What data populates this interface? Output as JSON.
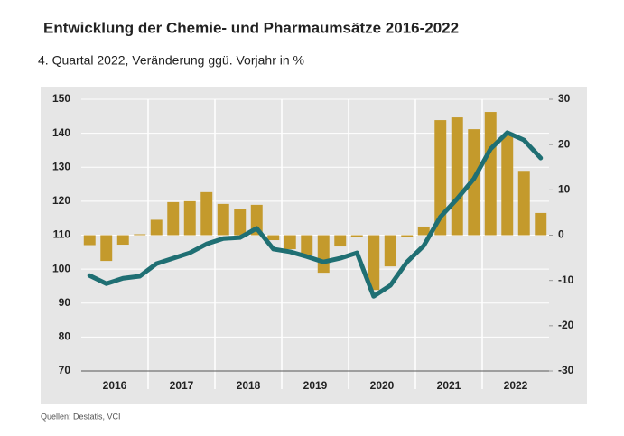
{
  "chart_data": {
    "type": "bar-line",
    "title": "Entwicklung der Chemie- und Pharmaumsätze 2016-2022",
    "subtitle": "4. Quartal 2022, Veränderung ggü. Vorjahr in %",
    "source": "Quellen: Destatis, VCI",
    "x_labels": [
      "2016",
      "2017",
      "2018",
      "2019",
      "2020",
      "2021",
      "2022"
    ],
    "series": [
      {
        "type": "bar",
        "axis": "y2",
        "color": "#c49a2c",
        "values": [
          -2.2,
          -5.7,
          -2.1,
          0.2,
          3.4,
          7.3,
          7.5,
          9.5,
          6.9,
          5.7,
          6.7,
          -1.1,
          -3.1,
          -4.3,
          -8.3,
          -2.5,
          -0.5,
          -12.1,
          -6.9,
          -0.5,
          1.9,
          25.4,
          26.0,
          23.4,
          27.2,
          22.0,
          14.2,
          4.9
        ]
      },
      {
        "type": "line",
        "axis": "y",
        "color": "#1f6f73",
        "values": [
          98.1,
          95.7,
          97.3,
          97.9,
          101.6,
          103.2,
          104.8,
          107.4,
          109.0,
          109.3,
          112.0,
          105.9,
          105.1,
          103.7,
          102.1,
          103.2,
          104.8,
          92.0,
          95.2,
          102.1,
          106.9,
          115.4,
          120.7,
          126.6,
          135.4,
          140.2,
          138.0,
          132.7
        ]
      }
    ],
    "ylim": [
      70,
      150
    ],
    "yticks": [
      70,
      80,
      90,
      100,
      110,
      120,
      130,
      140,
      150
    ],
    "y2lim": [
      -30,
      30
    ],
    "y2ticks": [
      -30,
      -20,
      -10,
      0,
      10,
      20,
      30
    ],
    "grid": true
  }
}
